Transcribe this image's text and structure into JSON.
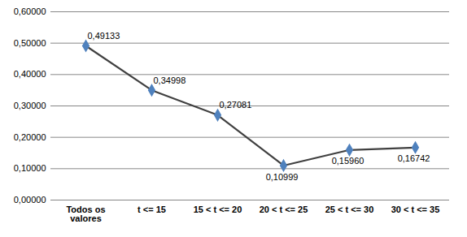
{
  "chart_data": {
    "type": "line",
    "categories": [
      "Todos os valores",
      "t <= 15",
      "15 < t <= 20",
      "20 < t <= 25",
      "25 < t <= 30",
      "30 < t <= 35"
    ],
    "values": [
      0.49133,
      0.34998,
      0.27081,
      0.10999,
      0.1596,
      0.16742
    ],
    "value_labels": [
      "0,49133",
      "0,34998",
      "0,27081",
      "0,10999",
      "0,15960",
      "0,16742"
    ],
    "data_labels": true,
    "color": "#4f81bd",
    "marker": "diamond",
    "ylim": [
      0,
      0.6
    ],
    "yticks": [
      {
        "value": 0,
        "label": "0,00000"
      },
      {
        "value": 0.1,
        "label": "0,10000"
      },
      {
        "value": 0.2,
        "label": "0,20000"
      },
      {
        "value": 0.3,
        "label": "0,30000"
      },
      {
        "value": 0.4,
        "label": "0,40000"
      },
      {
        "value": 0.5,
        "label": "0,50000"
      },
      {
        "value": 0.6,
        "label": "0,60000"
      }
    ],
    "grid": true
  }
}
